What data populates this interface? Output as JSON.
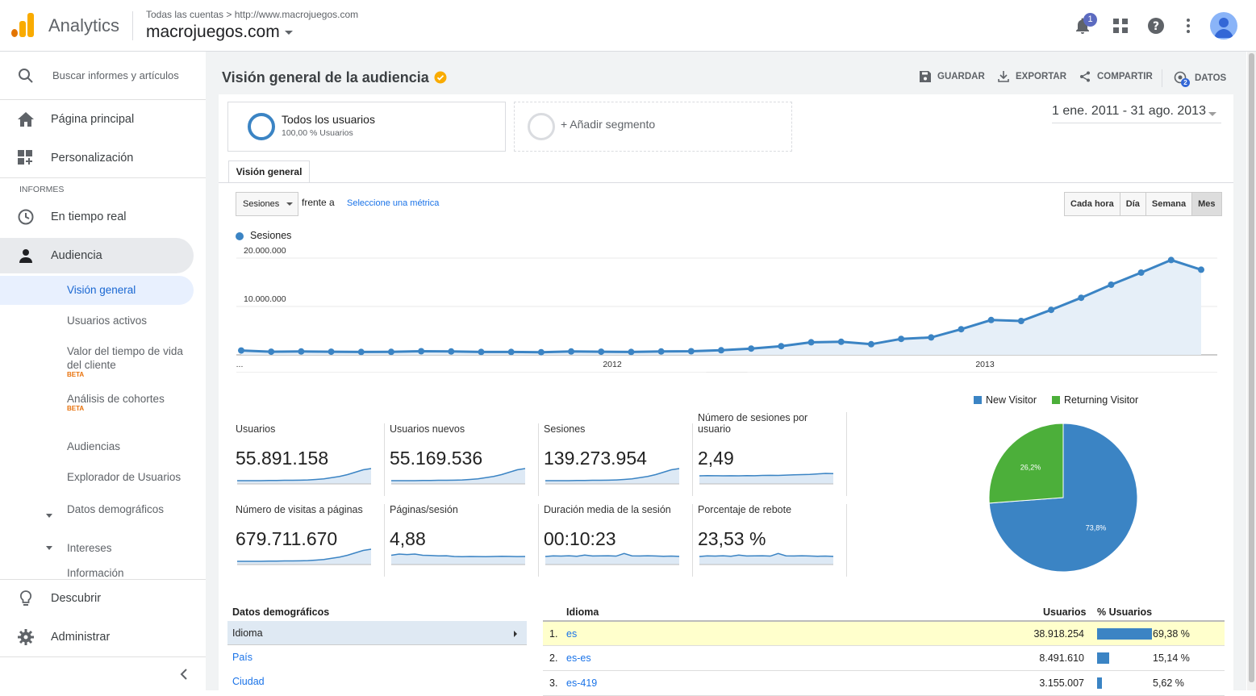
{
  "app": {
    "name": "Analytics",
    "breadcrumb": "Todas las cuentas > http://www.macrojuegos.com",
    "property": "macrojuegos.com",
    "notification_count": "1"
  },
  "colors": {
    "accent": "#1a73e8",
    "series": "#3b84c4",
    "new_visitor": "#3b84c4",
    "returning_visitor": "#4caf3a",
    "logo_orange": "#f9ab00",
    "logo_dark": "#e37400"
  },
  "sidebar": {
    "search_placeholder": "Buscar informes y artículos",
    "home": "Página principal",
    "custom": "Personalización",
    "reports_header": "INFORMES",
    "realtime": "En tiempo real",
    "audience": "Audiencia",
    "audience_items": [
      {
        "label": "Visión general"
      },
      {
        "label": "Usuarios activos"
      },
      {
        "label": "Valor del tiempo de vida del cliente",
        "badge": "BETA"
      },
      {
        "label": "Análisis de cohortes",
        "badge": "BETA"
      },
      {
        "label": "Audiencias"
      },
      {
        "label": "Explorador de Usuarios"
      },
      {
        "label": "Datos demográficos"
      },
      {
        "label": "Intereses"
      },
      {
        "label": "Información"
      }
    ],
    "discover": "Descubrir",
    "admin": "Administrar"
  },
  "page": {
    "title": "Visión general de la audiencia",
    "actions": {
      "save": "GUARDAR",
      "export": "EXPORTAR",
      "share": "COMPARTIR",
      "insights": "DATOS",
      "insights_badge": "2"
    },
    "segments": [
      {
        "name": "Todos los usuarios",
        "sub": "100,00 % Usuarios"
      },
      {
        "name": "+ Añadir segmento"
      }
    ],
    "date_range": "1 ene. 2011 - 31 ago. 2013",
    "tab": "Visión general",
    "metric_select": "Sesiones",
    "versus": "frente a",
    "select_metric": "Seleccione una métrica",
    "granularity": [
      "Cada hora",
      "Día",
      "Semana",
      "Mes"
    ],
    "series_label": "Sesiones"
  },
  "chart_data": {
    "type": "area",
    "title": "",
    "series": [
      {
        "name": "Sesiones",
        "values": [
          900000,
          650000,
          700000,
          650000,
          600000,
          620000,
          750000,
          700000,
          600000,
          600000,
          550000,
          700000,
          650000,
          600000,
          700000,
          750000,
          950000,
          1300000,
          1800000,
          2600000,
          2700000,
          2200000,
          3300000,
          3600000,
          5300000,
          7200000,
          7000000,
          9300000,
          11800000,
          14500000,
          17000000,
          19600000,
          17600000
        ]
      }
    ],
    "x_tick_labels": [
      "...",
      "2012",
      "2013"
    ],
    "y_tick_labels": [
      "10.000.000",
      "20.000.000"
    ],
    "ylim": [
      0,
      20000000
    ],
    "grid": true
  },
  "metrics": [
    {
      "label": "Usuarios",
      "value": "55.891.158"
    },
    {
      "label": "Usuarios nuevos",
      "value": "55.169.536"
    },
    {
      "label": "Sesiones",
      "value": "139.273.954"
    },
    {
      "label": "Número de sesiones por usuario",
      "value": "2,49"
    },
    {
      "label": "Número de visitas a páginas",
      "value": "679.711.670"
    },
    {
      "label": "Páginas/sesión",
      "value": "4,88"
    },
    {
      "label": "Duración media de la sesión",
      "value": "00:10:23"
    },
    {
      "label": "Porcentaje de rebote",
      "value": "23,53 %"
    }
  ],
  "pie": {
    "legend": [
      "New Visitor",
      "Returning Visitor"
    ],
    "values": [
      73.8,
      26.2
    ],
    "labels": [
      "73,8%",
      "26,2%"
    ]
  },
  "demographics": {
    "title": "Datos demográficos",
    "items": [
      "Idioma",
      "País",
      "Ciudad"
    ]
  },
  "table": {
    "headers": {
      "dimension": "Idioma",
      "users": "Usuarios",
      "pct": "% Usuarios"
    },
    "rows": [
      {
        "num": "1.",
        "lang": "es",
        "users": "38.918.254",
        "pct": "69,38 %",
        "share": 0.6938
      },
      {
        "num": "2.",
        "lang": "es-es",
        "users": "8.491.610",
        "pct": "15,14 %",
        "share": 0.1514
      },
      {
        "num": "3.",
        "lang": "es-419",
        "users": "3.155.007",
        "pct": "5,62 %",
        "share": 0.0562
      }
    ]
  }
}
